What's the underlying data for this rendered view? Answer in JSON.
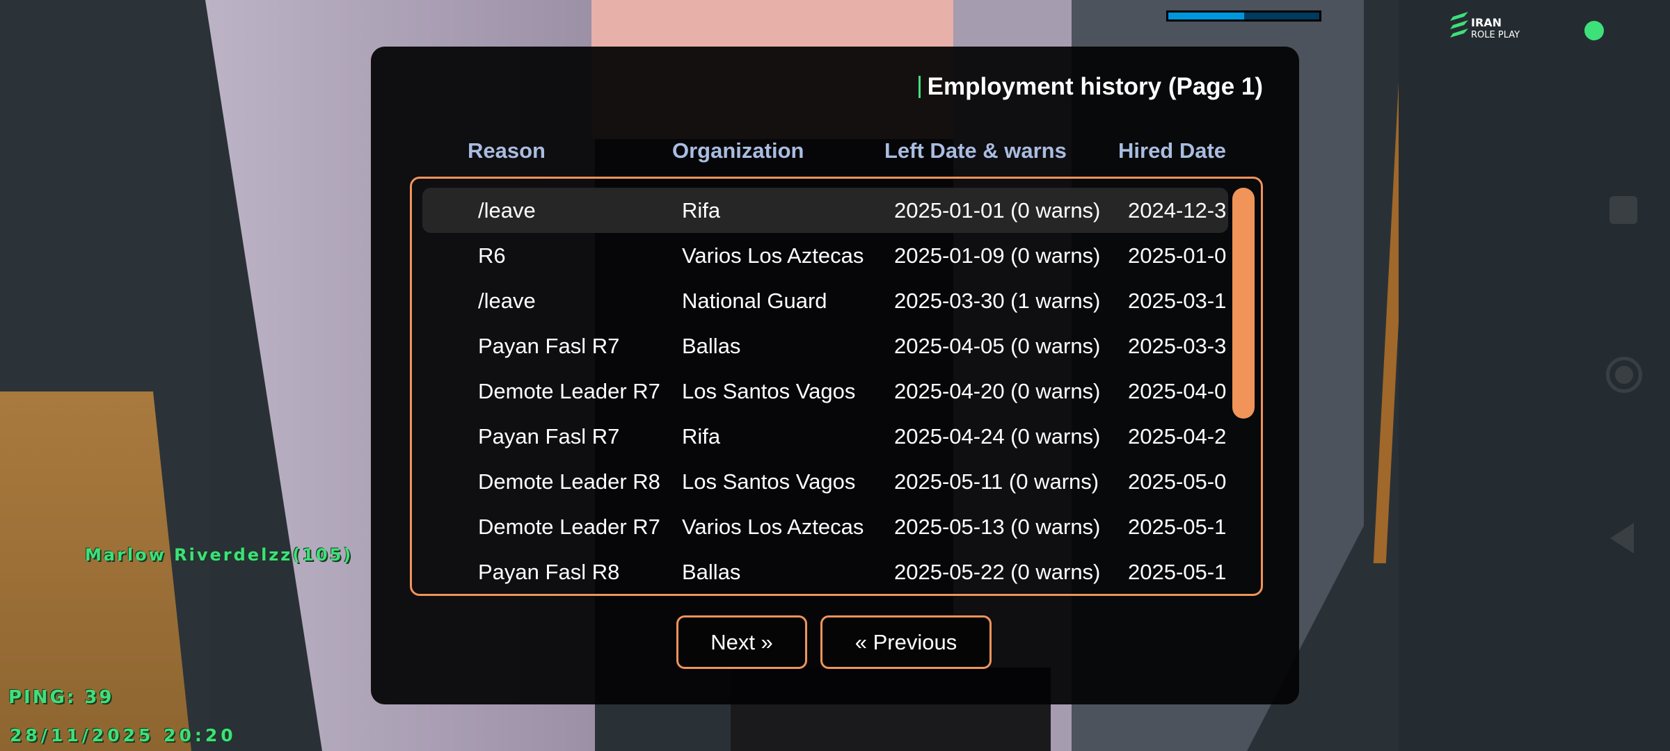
{
  "hud": {
    "player_tag": "Marlow Riverdelzz(105)",
    "ping": "PING: 39",
    "datetime": "28/11/2025 20:20",
    "progress_percent": 50,
    "logo_text": "IRAN ROLE PLAY",
    "status_color": "#3ee07a"
  },
  "dialog": {
    "title": "Employment history (Page 1)",
    "columns": [
      "Reason",
      "Organization",
      "Left Date & warns",
      "Hired Date"
    ],
    "rows": [
      [
        "/leave",
        "Rifa",
        "2025-01-01 (0 warns)",
        "2024-12-3"
      ],
      [
        "R6",
        "Varios Los Aztecas",
        "2025-01-09 (0 warns)",
        "2025-01-0"
      ],
      [
        "/leave",
        "National Guard",
        "2025-03-30 (1 warns)",
        "2025-03-1"
      ],
      [
        "Payan Fasl R7",
        "Ballas",
        "2025-04-05 (0 warns)",
        "2025-03-3"
      ],
      [
        "Demote Leader R7",
        "Los Santos Vagos",
        "2025-04-20 (0 warns)",
        "2025-04-0"
      ],
      [
        "Payan Fasl R7",
        "Rifa",
        "2025-04-24 (0 warns)",
        "2025-04-2"
      ],
      [
        "Demote Leader R8",
        "Los Santos Vagos",
        "2025-05-11 (0 warns)",
        "2025-05-0"
      ],
      [
        "Demote Leader R7",
        "Varios Los Aztecas",
        "2025-05-13 (0 warns)",
        "2025-05-1"
      ],
      [
        "Payan Fasl R8",
        "Ballas",
        "2025-05-22 (0 warns)",
        "2025-05-1"
      ]
    ],
    "next_label": "Next »",
    "previous_label": "« Previous",
    "accent_color": "#f0945a"
  }
}
